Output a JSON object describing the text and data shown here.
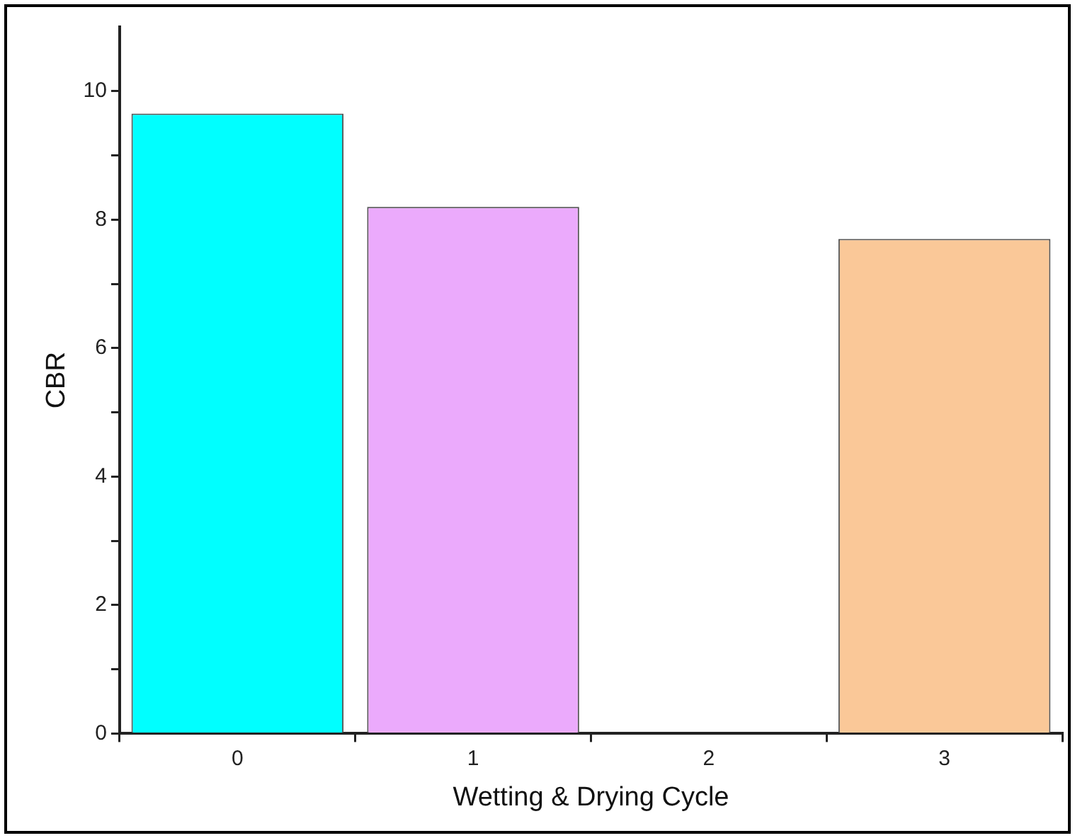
{
  "chart_data": {
    "type": "bar",
    "xlabel": "Wetting & Drying Cycle",
    "ylabel": "CBR",
    "categories": [
      "0",
      "1",
      "2",
      "3"
    ],
    "values": [
      9.65,
      8.2,
      null,
      7.7
    ],
    "colors": [
      "#00ffff",
      "#ebaafc",
      "#ffffff",
      "#fac898"
    ],
    "ylim": [
      0,
      11
    ],
    "yticks": [
      0,
      {
        "value": 1,
        "label": null
      },
      2,
      {
        "value": 3,
        "label": null
      },
      4,
      {
        "value": 5,
        "label": null
      },
      6,
      {
        "value": 7,
        "label": null
      },
      8,
      {
        "value": 9,
        "label": null
      },
      10
    ],
    "grid": false,
    "legend": false
  }
}
